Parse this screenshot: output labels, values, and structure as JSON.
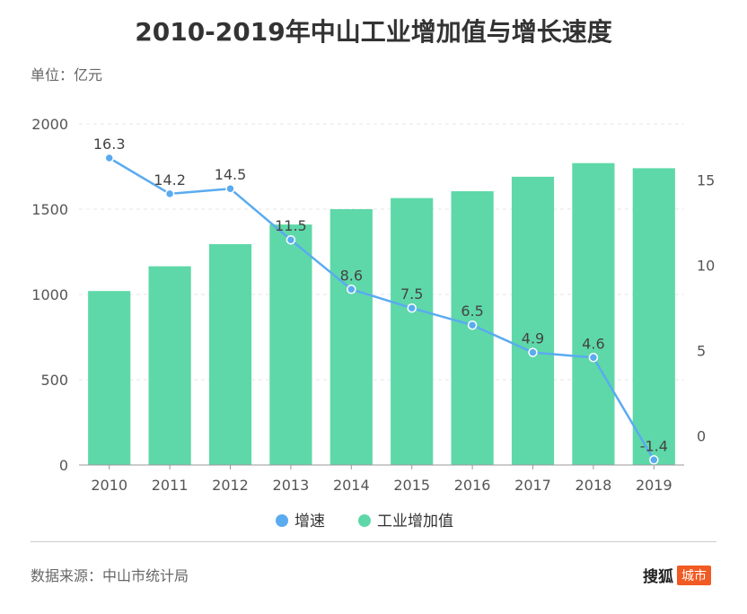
{
  "header": {
    "title": "2010-2019年中山工业增加值与增长速度",
    "unit": "单位：亿元"
  },
  "footer": {
    "source": "数据来源：中山市统计局",
    "brand_name": "搜狐",
    "brand_tag": "城市"
  },
  "colors": {
    "bar": "#5ed8a8",
    "line": "#5aabf0",
    "axis_text": "#555555",
    "grid": "#e6e6e6"
  },
  "chart_data": {
    "type": "bar",
    "categories": [
      "2010",
      "2011",
      "2012",
      "2013",
      "2014",
      "2015",
      "2016",
      "2017",
      "2018",
      "2019"
    ],
    "series": [
      {
        "name": "工业增加值",
        "type": "bar",
        "axis": "left",
        "values": [
          1020,
          1165,
          1295,
          1410,
          1500,
          1565,
          1605,
          1690,
          1770,
          1740
        ]
      },
      {
        "name": "增速",
        "type": "line",
        "axis": "right",
        "values": [
          16.3,
          14.2,
          14.5,
          11.5,
          8.6,
          7.5,
          6.5,
          4.9,
          4.6,
          -1.4
        ],
        "labels": [
          "16.3",
          "14.2",
          "14.5",
          "11.5",
          "8.6",
          "7.5",
          "6.5",
          "4.9",
          "4.6",
          "-1.4"
        ]
      }
    ],
    "y_left": {
      "min": 0,
      "max": 2000,
      "ticks": [
        "0",
        "500",
        "1000",
        "1500",
        "2000"
      ]
    },
    "y_right": {
      "min": -1.7,
      "max": 18.3,
      "ticks": [
        "0",
        "5",
        "10",
        "15"
      ]
    },
    "legend": [
      "增速",
      "工业增加值"
    ],
    "grid": true
  }
}
